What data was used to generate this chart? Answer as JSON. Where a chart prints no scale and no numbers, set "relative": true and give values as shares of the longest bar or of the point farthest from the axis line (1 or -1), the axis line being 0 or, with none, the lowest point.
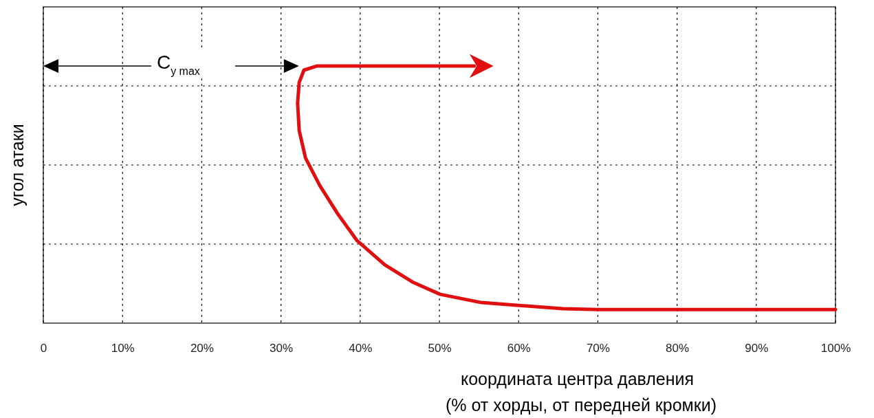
{
  "chart_data": {
    "type": "line",
    "relative": true,
    "xlabel": "координата центра давления\n(% от хорды, от передней кромки)",
    "ylabel": "угол атаки",
    "xlim": [
      0,
      100
    ],
    "xticks": [
      {
        "value": 0,
        "label": "0"
      },
      {
        "value": 10,
        "label": "10%"
      },
      {
        "value": 20,
        "label": "20%"
      },
      {
        "value": 30,
        "label": "30%"
      },
      {
        "value": 40,
        "label": "40%"
      },
      {
        "value": 50,
        "label": "50%"
      },
      {
        "value": 60,
        "label": "60%"
      },
      {
        "value": 70,
        "label": "70%"
      },
      {
        "value": 80,
        "label": "80%"
      },
      {
        "value": 90,
        "label": "90%"
      },
      {
        "value": 100,
        "label": "100%"
      }
    ],
    "grid": true,
    "line_style": "solid",
    "marker": "none",
    "annotations": [
      "C$_{y max}$"
    ],
    "series": [
      {
        "color": "#e01010",
        "x": [
          100,
          70,
          65.6,
          55.3,
          50.1,
          46.6,
          43.1,
          39.6,
          37.1,
          34.9,
          33.1,
          32.3,
          32.1,
          32.3,
          32.9,
          34.5,
          42.3,
          54.4
        ],
        "values": [
          0.053,
          0.053,
          0.056,
          0.08,
          0.112,
          0.16,
          0.227,
          0.321,
          0.428,
          0.535,
          0.642,
          0.749,
          0.856,
          0.936,
          0.984,
          1,
          1,
          1
        ]
      }
    ]
  }
}
